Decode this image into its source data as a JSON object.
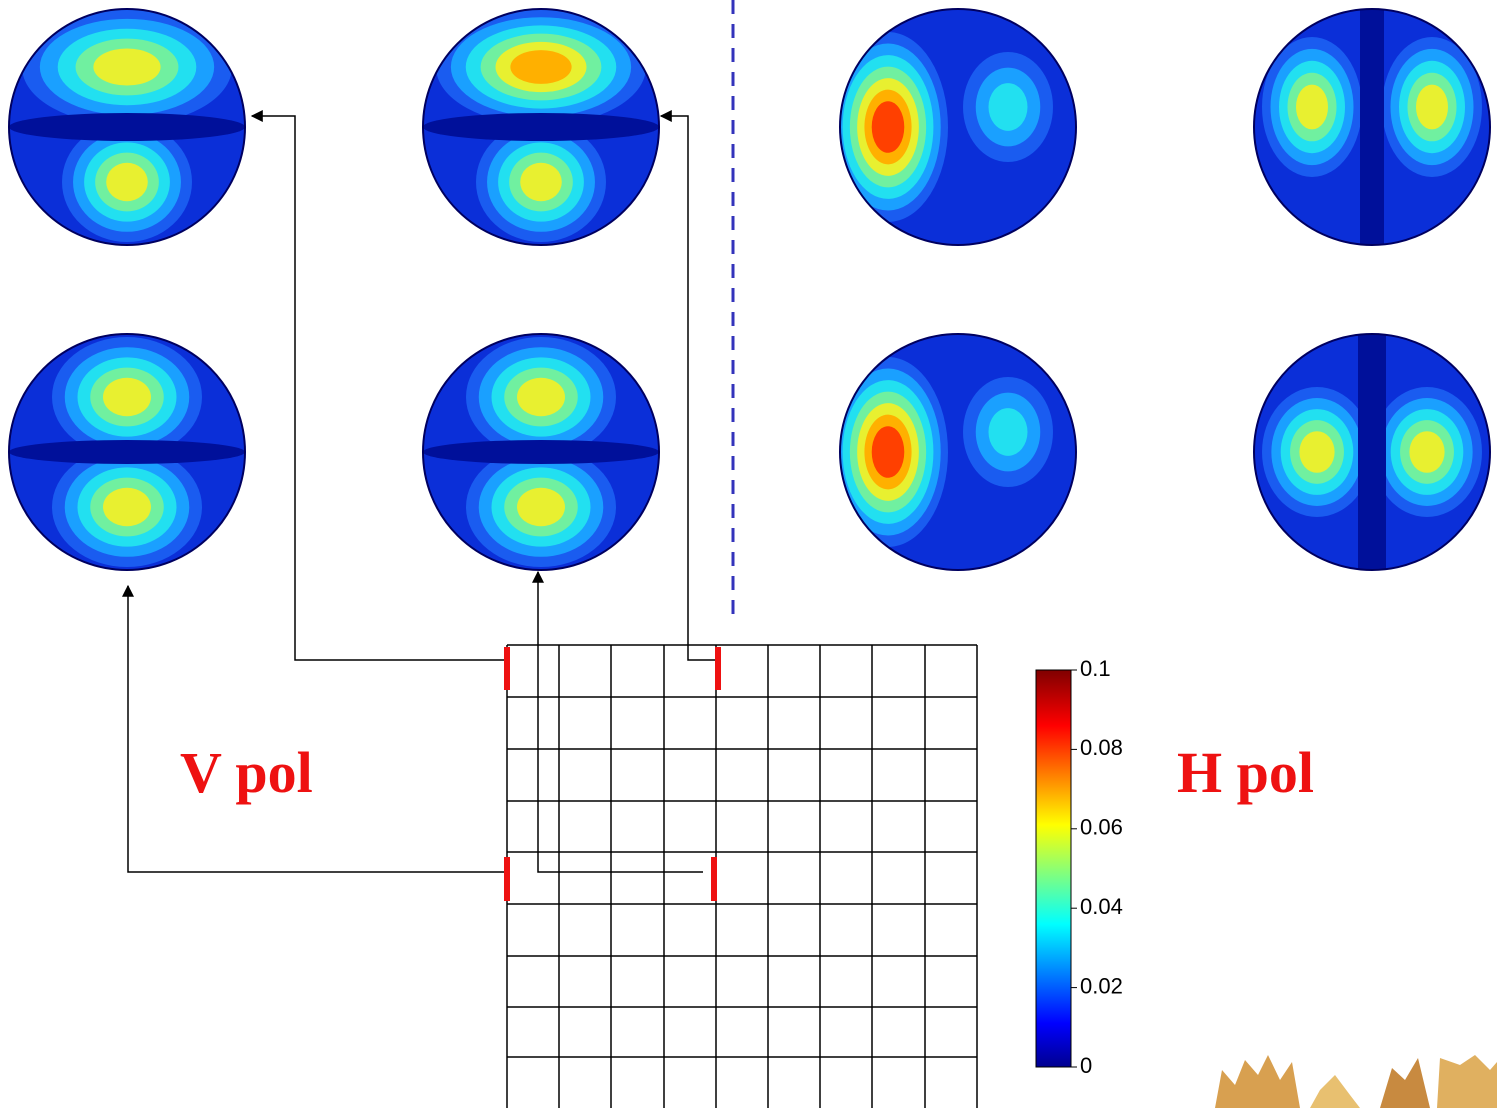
{
  "labels": {
    "v_pol": "V pol",
    "h_pol": "H pol"
  },
  "colorbar": {
    "lim": [
      0,
      0.1
    ],
    "ticks": [
      0,
      0.02,
      0.04,
      0.06,
      0.08,
      0.1
    ]
  }
}
